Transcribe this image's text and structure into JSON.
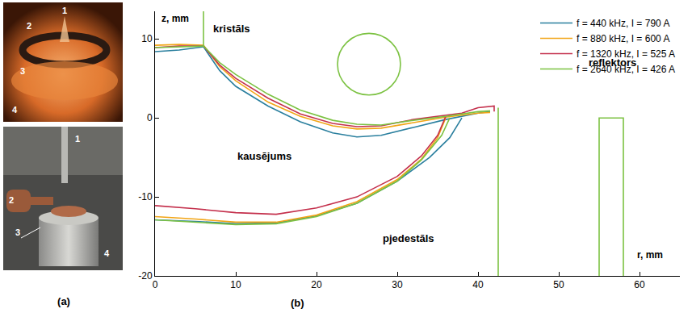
{
  "panel_a": {
    "letter": "(a)",
    "photos": [
      {
        "labels": [
          "1",
          "2",
          "3",
          "4"
        ]
      },
      {
        "labels": [
          "1",
          "2",
          "3",
          "4"
        ]
      }
    ]
  },
  "chart_data": {
    "type": "line",
    "panel_letter": "(b)",
    "x_label": "r, mm",
    "y_label": "z, mm",
    "xlim": [
      0,
      65
    ],
    "ylim": [
      -20,
      13.5
    ],
    "xticks": [
      0,
      10,
      20,
      30,
      40,
      50,
      60
    ],
    "yticks": [
      -20,
      -10,
      0,
      10
    ],
    "grid": false,
    "legend": "upper right",
    "annotations": [
      "kristāls",
      "kausējums",
      "pjedestāls",
      "reflektors"
    ],
    "series": [
      {
        "name": "f = 440 kHz, I = 790 A",
        "color": "#2a7f9e",
        "x": [
          0,
          3,
          6,
          null,
          6,
          8,
          10,
          14,
          18,
          22,
          25,
          28,
          32,
          36,
          40,
          41.5,
          null,
          0,
          5,
          10,
          15,
          20,
          25,
          30,
          34,
          36.5,
          38
        ],
        "values": [
          8.4,
          8.6,
          9.0,
          null,
          9.0,
          6.0,
          4.0,
          1.5,
          -0.5,
          -1.9,
          -2.4,
          -2.2,
          -1.2,
          -0.2,
          0.6,
          0.8,
          null,
          -12.9,
          -13.1,
          -13.4,
          -13.3,
          -12.4,
          -10.8,
          -8.0,
          -5.0,
          -2.5,
          0.0
        ]
      },
      {
        "name": "f = 880 kHz, I = 600 A",
        "color": "#f2a516",
        "x": [
          0,
          3,
          6,
          null,
          6,
          8,
          10,
          14,
          18,
          22,
          25,
          28,
          32,
          36,
          40,
          41.5,
          null,
          0,
          5,
          10,
          15,
          20,
          25,
          30,
          33,
          35,
          36
        ],
        "values": [
          9.2,
          9.3,
          9.2,
          null,
          9.2,
          6.5,
          4.7,
          2.0,
          0.2,
          -1.0,
          -1.4,
          -1.3,
          -0.6,
          0.1,
          0.6,
          0.7,
          null,
          -12.5,
          -12.8,
          -13.2,
          -13.2,
          -12.3,
          -10.6,
          -7.8,
          -5.2,
          -2.5,
          0.0
        ]
      },
      {
        "name": "f = 1320 kHz, I = 525 A",
        "color": "#c4304c",
        "x": [
          0,
          3,
          6,
          null,
          6,
          8,
          10,
          14,
          18,
          22,
          25,
          28,
          32,
          35,
          38,
          40,
          42,
          42,
          null,
          0,
          5,
          10,
          15,
          20,
          25,
          30,
          33,
          35,
          36
        ],
        "values": [
          8.9,
          9.1,
          9.1,
          null,
          9.1,
          6.7,
          5.0,
          2.5,
          0.5,
          -0.7,
          -1.1,
          -1.0,
          -0.2,
          0.2,
          0.6,
          1.3,
          1.5,
          0.8,
          null,
          -11.1,
          -11.5,
          -12.0,
          -12.2,
          -11.4,
          -10.0,
          -7.4,
          -4.8,
          -2.2,
          0.2
        ]
      },
      {
        "name": "f = 2640 kHz, I = 426 A",
        "color": "#7cc242",
        "x": [
          0,
          3,
          6,
          null,
          6,
          8,
          10,
          14,
          18,
          22,
          25,
          28,
          32,
          36,
          40,
          41.5,
          null,
          0,
          5,
          10,
          15,
          20,
          25,
          30,
          33,
          35.5,
          36.5
        ],
        "values": [
          8.9,
          9.0,
          9.1,
          null,
          9.1,
          7.0,
          5.5,
          3.0,
          1.0,
          -0.3,
          -0.8,
          -0.9,
          -0.3,
          0.2,
          0.8,
          0.9,
          null,
          -12.9,
          -13.2,
          -13.5,
          -13.4,
          -12.5,
          -10.8,
          -8.0,
          -5.3,
          -2.2,
          0.0
        ]
      }
    ],
    "geometry": {
      "color": "#7cc242",
      "lines": [
        {
          "x": [
            6,
            6
          ],
          "y": [
            9.1,
            13.5
          ]
        },
        {
          "x": [
            42.5,
            42.5
          ],
          "y": [
            1.3,
            -20
          ]
        },
        {
          "x": [
            55,
            55,
            58,
            58
          ],
          "y": [
            -20,
            0,
            0,
            -20
          ]
        }
      ],
      "circle": {
        "x": 26.5,
        "y": 6.8,
        "radius": 3.9
      }
    }
  }
}
